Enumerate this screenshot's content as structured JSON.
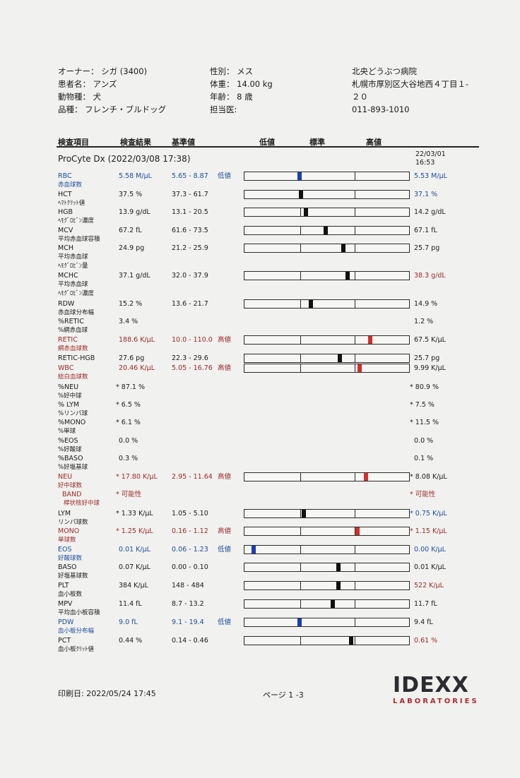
{
  "header": {
    "owner": "オーナー： シガ (3400)",
    "patient": "患者名： アンズ",
    "species": "動物種： 犬",
    "breed": "品種： フレンチ・ブルドッグ",
    "sex": "性別： メス",
    "weight": "体重： 14.00 kg",
    "age": "年齢： 8 歳",
    "doctor": "担当医:",
    "clinic_name": "北央どうぶつ病院",
    "clinic_address_1": "札幌市厚別区大谷地西４丁目１-",
    "clinic_address_2": "２０",
    "clinic_phone": "011-893-1010"
  },
  "columns": {
    "item": "検査項目",
    "result": "検査結果",
    "range": "基準値",
    "low": "低値",
    "normal": "標準",
    "high": "高値"
  },
  "section": {
    "title": "ProCyte Dx (2022/03/08 17:38)",
    "prev_date": "22/03/01",
    "prev_time": "16:53"
  },
  "status_colors": {
    "low": "#1c4ea0",
    "high": "#9a2a28",
    "normal": "#1b1b1b",
    "marker_low": "#1a3fb0",
    "marker_high": "#d2302a"
  },
  "rows": [
    {
      "name": "RBC",
      "jp": [
        "赤血球数"
      ],
      "result": "5.58 M/µL",
      "range": "5.65 - 8.87",
      "flag": "低値",
      "status": "low",
      "prev": "5.53 M/µL",
      "prev_status": "low",
      "bar": true
    },
    {
      "name": "HCT",
      "jp": [
        "ﾍﾏﾄｸﾘｯﾄ値"
      ],
      "result": "37.5 %",
      "range": "37.3 - 61.7",
      "flag": "",
      "status": "normal",
      "prev": "37.1 %",
      "prev_status": "low",
      "bar": true
    },
    {
      "name": "HGB",
      "jp": [
        "ﾍﾓｸﾞﾛﾋﾞﾝ濃度"
      ],
      "result": "13.9 g/dL",
      "range": "13.1 - 20.5",
      "flag": "",
      "status": "normal",
      "prev": "14.2 g/dL",
      "prev_status": "normal",
      "bar": true
    },
    {
      "name": "MCV",
      "jp": [
        "平均赤血球容積"
      ],
      "result": "67.2 fL",
      "range": "61.6 - 73.5",
      "flag": "",
      "status": "normal",
      "prev": "67.1 fL",
      "prev_status": "normal",
      "bar": true
    },
    {
      "name": "MCH",
      "jp": [
        "平均赤血球",
        "ﾍﾓｸﾞﾛﾋﾞﾝ量"
      ],
      "result": "24.9 pg",
      "range": "21.2 - 25.9",
      "flag": "",
      "status": "normal",
      "prev": "25.7 pg",
      "prev_status": "normal",
      "bar": true
    },
    {
      "name": "MCHC",
      "jp": [
        "平均赤血球",
        "ﾍﾓｸﾞﾛﾋﾞﾝ濃度"
      ],
      "result": "37.1 g/dL",
      "range": "32.0 - 37.9",
      "flag": "",
      "status": "normal",
      "prev": "38.3 g/dL",
      "prev_status": "high",
      "bar": true
    },
    {
      "name": "RDW",
      "jp": [
        "赤血球分布幅"
      ],
      "result": "15.2 %",
      "range": "13.6 - 21.7",
      "flag": "",
      "status": "normal",
      "prev": "14.9 %",
      "prev_status": "normal",
      "bar": true
    },
    {
      "name": "%RETIC",
      "jp": [
        "%網赤血球"
      ],
      "result": "3.4 %",
      "range": "",
      "flag": "",
      "status": "normal",
      "prev": "1.2 %",
      "prev_status": "normal",
      "bar": false
    },
    {
      "name": "RETIC",
      "jp": [
        "網赤血球数"
      ],
      "result": "188.6 K/µL",
      "range": "10.0 - 110.0",
      "flag": "高値",
      "status": "high",
      "prev": "67.5 K/µL",
      "prev_status": "normal",
      "bar": true
    },
    {
      "name": "RETIC-HGB",
      "jp": [],
      "result": "27.6 pg",
      "range": "22.3 - 29.6",
      "flag": "",
      "status": "normal",
      "prev": "25.7 pg",
      "prev_status": "normal",
      "bar": true
    },
    {
      "name": "WBC",
      "jp": [
        "総白血球数"
      ],
      "result": "20.46 K/µL",
      "range": "5.05 - 16.76",
      "flag": "高値",
      "status": "high",
      "prev": "9.99 K/µL",
      "prev_status": "normal",
      "bar": true
    },
    {
      "name": "%NEU",
      "jp": [
        "%好中球"
      ],
      "result": "* 87.1 %",
      "range": "",
      "flag": "",
      "status": "normal",
      "prev": "* 80.9 %",
      "prev_status": "normal",
      "bar": false
    },
    {
      "name": "% LYM",
      "jp": [
        "%リンパ球"
      ],
      "result": "* 6.5 %",
      "range": "",
      "flag": "",
      "status": "normal",
      "prev": "* 7.5 %",
      "prev_status": "normal",
      "bar": false
    },
    {
      "name": "%MONO",
      "jp": [
        "%単球"
      ],
      "result": "* 6.1 %",
      "range": "",
      "flag": "",
      "status": "normal",
      "prev": "* 11.5 %",
      "prev_status": "normal",
      "bar": false
    },
    {
      "name": "%EOS",
      "jp": [
        "%好酸球"
      ],
      "result": "0.0 %",
      "range": "",
      "flag": "",
      "status": "normal",
      "prev": "0.0 %",
      "prev_status": "normal",
      "bar": false
    },
    {
      "name": "%BASO",
      "jp": [
        "%好塩基球"
      ],
      "result": "0.3 %",
      "range": "",
      "flag": "",
      "status": "normal",
      "prev": "0.1 %",
      "prev_status": "normal",
      "bar": false
    },
    {
      "name": "NEU",
      "jp": [
        "好中球数"
      ],
      "result": "* 17.80 K/µL",
      "range": "2.95 - 11.64",
      "flag": "高値",
      "status": "high",
      "prev": "* 8.08 K/µL",
      "prev_status": "normal",
      "bar": true
    },
    {
      "name": "BAND",
      "jp": [
        "桿状核好中球"
      ],
      "result": "* 可能性",
      "range": "",
      "flag": "",
      "status": "high",
      "prev": "* 可能性",
      "prev_status": "high",
      "bar": false,
      "indent": true
    },
    {
      "name": "LYM",
      "jp": [
        "リンパ球数"
      ],
      "result": "* 1.33 K/µL",
      "range": "1.05 - 5.10",
      "flag": "",
      "status": "normal",
      "prev": "* 0.75 K/µL",
      "prev_status": "low",
      "bar": true
    },
    {
      "name": "MONO",
      "jp": [
        "単球数"
      ],
      "result": "* 1.25 K/µL",
      "range": "0.16 - 1.12",
      "flag": "高値",
      "status": "high",
      "prev": "* 1.15 K/µL",
      "prev_status": "high",
      "bar": true
    },
    {
      "name": "EOS",
      "jp": [
        "好酸球数"
      ],
      "result": "0.01 K/µL",
      "range": "0.06 - 1.23",
      "flag": "低値",
      "status": "low",
      "prev": "0.00 K/µL",
      "prev_status": "low",
      "bar": true
    },
    {
      "name": "BASO",
      "jp": [
        "好塩基球数"
      ],
      "result": "0.07 K/µL",
      "range": "0.00 - 0.10",
      "flag": "",
      "status": "normal",
      "prev": "0.01 K/µL",
      "prev_status": "normal",
      "bar": true
    },
    {
      "name": "PLT",
      "jp": [
        "血小板数"
      ],
      "result": "384 K/µL",
      "range": "148 - 484",
      "flag": "",
      "status": "normal",
      "prev": "522 K/µL",
      "prev_status": "high",
      "bar": true
    },
    {
      "name": "MPV",
      "jp": [
        "平均血小板容積"
      ],
      "result": "11.4 fL",
      "range": "8.7 - 13.2",
      "flag": "",
      "status": "normal",
      "prev": "11.7 fL",
      "prev_status": "normal",
      "bar": true
    },
    {
      "name": "PDW",
      "jp": [
        "血小板分布幅"
      ],
      "result": "9.0 fL",
      "range": "9.1 - 19.4",
      "flag": "低値",
      "status": "low",
      "prev": "9.4 fL",
      "prev_status": "normal",
      "bar": true
    },
    {
      "name": "PCT",
      "jp": [
        "血小板ｸﾘｯﾄ値"
      ],
      "result": "0.44 %",
      "range": "0.14 - 0.46",
      "flag": "",
      "status": "normal",
      "prev": "0.61 %",
      "prev_status": "high",
      "bar": true
    }
  ],
  "footer": {
    "print_date": "印刷日: 2022/05/24 17:45",
    "page": "ページ 1 -3",
    "logo_main": "IDEXX",
    "logo_sub": "LABORATORIES"
  }
}
